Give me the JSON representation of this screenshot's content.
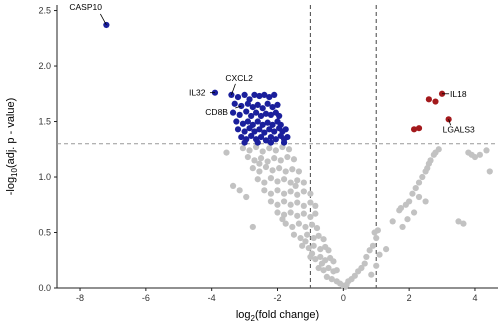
{
  "chart_data": {
    "type": "scatter",
    "title": "",
    "xlabel_parts": {
      "pre": "log",
      "sub": "2",
      "post": "(fold change)"
    },
    "ylabel_parts": {
      "pre": "-log",
      "sub": "10",
      "post": "(adj. p - value)"
    },
    "xlim": [
      -8.7,
      4.7
    ],
    "ylim": [
      0,
      2.55
    ],
    "x_ticks": [
      -8,
      -6,
      -4,
      -2,
      0,
      2,
      4
    ],
    "x_tick_labels": [
      "-8",
      "-6",
      "-4",
      "-2",
      "0",
      "2",
      "4"
    ],
    "y_ticks": [
      0,
      0.5,
      1.0,
      1.5,
      2.0,
      2.5
    ],
    "y_tick_labels": [
      "0.0",
      "0.5",
      "1.0",
      "1.5",
      "2.0",
      "2.5"
    ],
    "grid": false,
    "thresholds": {
      "vertical_x": [
        -1,
        1
      ],
      "horizontal_y": 1.3
    },
    "colors": {
      "down": "#1a1f9c",
      "up": "#a3191c",
      "ns": "#c2c2c2",
      "threshold": "#555555"
    },
    "series": [
      {
        "key": "down",
        "points": [
          [
            -7.2,
            2.37
          ],
          [
            -3.9,
            1.76
          ],
          [
            -3.4,
            1.74
          ],
          [
            -3.2,
            1.72
          ],
          [
            -3.0,
            1.74
          ],
          [
            -2.85,
            1.7
          ],
          [
            -2.7,
            1.74
          ],
          [
            -2.55,
            1.73
          ],
          [
            -2.4,
            1.74
          ],
          [
            -2.25,
            1.72
          ],
          [
            -2.1,
            1.74
          ],
          [
            -3.3,
            1.66
          ],
          [
            -3.1,
            1.64
          ],
          [
            -2.9,
            1.66
          ],
          [
            -2.75,
            1.63
          ],
          [
            -2.6,
            1.65
          ],
          [
            -2.45,
            1.62
          ],
          [
            -2.3,
            1.66
          ],
          [
            -2.15,
            1.63
          ],
          [
            -2.0,
            1.65
          ],
          [
            -3.35,
            1.58
          ],
          [
            -3.15,
            1.56
          ],
          [
            -2.95,
            1.59
          ],
          [
            -2.8,
            1.55
          ],
          [
            -2.65,
            1.58
          ],
          [
            -2.5,
            1.55
          ],
          [
            -2.35,
            1.57
          ],
          [
            -2.2,
            1.56
          ],
          [
            -2.05,
            1.58
          ],
          [
            -1.95,
            1.55
          ],
          [
            -3.25,
            1.5
          ],
          [
            -3.05,
            1.48
          ],
          [
            -2.9,
            1.5
          ],
          [
            -2.75,
            1.47
          ],
          [
            -2.6,
            1.5
          ],
          [
            -2.45,
            1.47
          ],
          [
            -2.3,
            1.49
          ],
          [
            -2.15,
            1.47
          ],
          [
            -2.0,
            1.5
          ],
          [
            -1.9,
            1.47
          ],
          [
            -3.2,
            1.43
          ],
          [
            -3.0,
            1.41
          ],
          [
            -2.85,
            1.44
          ],
          [
            -2.7,
            1.41
          ],
          [
            -2.55,
            1.43
          ],
          [
            -2.4,
            1.4
          ],
          [
            -2.25,
            1.43
          ],
          [
            -2.1,
            1.41
          ],
          [
            -1.95,
            1.44
          ],
          [
            -1.85,
            1.41
          ],
          [
            -1.75,
            1.43
          ],
          [
            -3.1,
            1.36
          ],
          [
            -2.95,
            1.34
          ],
          [
            -2.8,
            1.37
          ],
          [
            -2.65,
            1.34
          ],
          [
            -2.5,
            1.36
          ],
          [
            -2.35,
            1.33
          ],
          [
            -2.2,
            1.36
          ],
          [
            -2.05,
            1.34
          ],
          [
            -1.9,
            1.37
          ],
          [
            -1.8,
            1.34
          ],
          [
            -1.7,
            1.36
          ],
          [
            -3.0,
            1.31
          ],
          [
            -2.6,
            1.31
          ],
          [
            -2.2,
            1.31
          ],
          [
            -1.8,
            1.31
          ]
        ]
      },
      {
        "key": "up",
        "points": [
          [
            2.3,
            1.44
          ],
          [
            2.15,
            1.43
          ],
          [
            2.6,
            1.7
          ],
          [
            2.8,
            1.68
          ],
          [
            3.0,
            1.75
          ],
          [
            3.2,
            1.52
          ]
        ]
      },
      {
        "key": "ns",
        "points": [
          [
            -3.05,
            1.26
          ],
          [
            -2.85,
            1.24
          ],
          [
            -2.65,
            1.27
          ],
          [
            -2.45,
            1.23
          ],
          [
            -2.25,
            1.26
          ],
          [
            -2.05,
            1.24
          ],
          [
            -1.85,
            1.27
          ],
          [
            -1.65,
            1.25
          ],
          [
            -2.9,
            1.18
          ],
          [
            -2.7,
            1.15
          ],
          [
            -2.5,
            1.17
          ],
          [
            -2.3,
            1.14
          ],
          [
            -2.1,
            1.17
          ],
          [
            -1.9,
            1.15
          ],
          [
            -1.7,
            1.18
          ],
          [
            -1.5,
            1.16
          ],
          [
            -2.75,
            1.08
          ],
          [
            -2.55,
            1.05
          ],
          [
            -2.35,
            1.09
          ],
          [
            -2.15,
            1.06
          ],
          [
            -1.95,
            1.08
          ],
          [
            -1.75,
            1.05
          ],
          [
            -1.55,
            1.07
          ],
          [
            -1.35,
            1.05
          ],
          [
            -2.6,
            0.98
          ],
          [
            -2.4,
            0.95
          ],
          [
            -2.2,
            0.99
          ],
          [
            -2.0,
            0.96
          ],
          [
            -1.8,
            0.98
          ],
          [
            -1.6,
            0.95
          ],
          [
            -1.4,
            0.97
          ],
          [
            -1.2,
            0.95
          ],
          [
            -2.4,
            0.88
          ],
          [
            -2.2,
            0.85
          ],
          [
            -2.0,
            0.88
          ],
          [
            -1.8,
            0.85
          ],
          [
            -1.6,
            0.87
          ],
          [
            -1.4,
            0.84
          ],
          [
            -1.2,
            0.87
          ],
          [
            -1.0,
            0.85
          ],
          [
            -2.2,
            0.78
          ],
          [
            -2.0,
            0.75
          ],
          [
            -1.8,
            0.78
          ],
          [
            -1.6,
            0.75
          ],
          [
            -1.4,
            0.77
          ],
          [
            -1.2,
            0.74
          ],
          [
            -1.0,
            0.77
          ],
          [
            -0.85,
            0.74
          ],
          [
            -2.0,
            0.68
          ],
          [
            -1.8,
            0.66
          ],
          [
            -1.6,
            0.68
          ],
          [
            -1.4,
            0.65
          ],
          [
            -1.2,
            0.67
          ],
          [
            -1.0,
            0.64
          ],
          [
            -0.85,
            0.67
          ],
          [
            -1.75,
            0.58
          ],
          [
            -1.55,
            0.55
          ],
          [
            -1.35,
            0.58
          ],
          [
            -1.15,
            0.55
          ],
          [
            -0.95,
            0.57
          ],
          [
            -0.8,
            0.54
          ],
          [
            -1.5,
            0.48
          ],
          [
            -1.3,
            0.45
          ],
          [
            -1.1,
            0.48
          ],
          [
            -0.9,
            0.45
          ],
          [
            -0.75,
            0.47
          ],
          [
            -0.6,
            0.44
          ],
          [
            -1.25,
            0.38
          ],
          [
            -1.05,
            0.36
          ],
          [
            -0.9,
            0.38
          ],
          [
            -0.7,
            0.35
          ],
          [
            -0.55,
            0.37
          ],
          [
            -0.45,
            0.34
          ],
          [
            -1.0,
            0.28
          ],
          [
            -0.85,
            0.26
          ],
          [
            -0.7,
            0.28
          ],
          [
            -0.55,
            0.25
          ],
          [
            -0.4,
            0.27
          ],
          [
            -0.3,
            0.24
          ],
          [
            -0.75,
            0.18
          ],
          [
            -0.6,
            0.16
          ],
          [
            -0.45,
            0.18
          ],
          [
            -0.3,
            0.15
          ],
          [
            -0.2,
            0.16
          ],
          [
            -0.5,
            0.1
          ],
          [
            -0.35,
            0.08
          ],
          [
            -0.2,
            0.06
          ],
          [
            -0.1,
            0.04
          ],
          [
            0.0,
            0.02
          ],
          [
            0.05,
            0.01
          ],
          [
            0.1,
            0.03
          ],
          [
            -2.55,
            1.12
          ],
          [
            -1.45,
            0.92
          ],
          [
            -1.85,
            0.62
          ],
          [
            -1.15,
            0.42
          ],
          [
            -0.95,
            0.31
          ],
          [
            -0.65,
            0.22
          ],
          [
            -3.55,
            1.22
          ],
          [
            -3.35,
            0.92
          ],
          [
            -3.15,
            0.88
          ],
          [
            -2.95,
            0.82
          ],
          [
            -2.75,
            0.55
          ],
          [
            0.15,
            0.06
          ],
          [
            0.25,
            0.08
          ],
          [
            0.35,
            0.11
          ],
          [
            0.45,
            0.15
          ],
          [
            0.55,
            0.18
          ],
          [
            0.65,
            0.22
          ],
          [
            0.7,
            0.28
          ],
          [
            0.8,
            0.34
          ],
          [
            0.9,
            0.38
          ],
          [
            1.0,
            0.45
          ],
          [
            1.05,
            0.52
          ],
          [
            0.95,
            0.5
          ],
          [
            1.0,
            0.2
          ],
          [
            0.85,
            0.12
          ],
          [
            1.1,
            0.3
          ],
          [
            1.3,
            0.35
          ],
          [
            1.5,
            0.6
          ],
          [
            1.7,
            0.7
          ],
          [
            1.75,
            0.72
          ],
          [
            1.9,
            0.75
          ],
          [
            2.0,
            0.78
          ],
          [
            2.1,
            0.85
          ],
          [
            2.2,
            0.9
          ],
          [
            2.3,
            0.95
          ],
          [
            2.4,
            1.0
          ],
          [
            2.5,
            1.05
          ],
          [
            2.55,
            1.08
          ],
          [
            2.6,
            1.12
          ],
          [
            2.65,
            1.15
          ],
          [
            2.75,
            1.2
          ],
          [
            2.8,
            1.22
          ],
          [
            2.9,
            1.25
          ],
          [
            2.3,
            0.82
          ],
          [
            2.5,
            0.78
          ],
          [
            1.8,
            0.55
          ],
          [
            1.95,
            0.62
          ],
          [
            2.15,
            0.68
          ],
          [
            3.8,
            1.22
          ],
          [
            3.9,
            1.2
          ],
          [
            4.0,
            1.18
          ],
          [
            4.15,
            1.2
          ],
          [
            4.35,
            1.24
          ],
          [
            4.45,
            1.05
          ],
          [
            3.5,
            0.6
          ],
          [
            3.65,
            0.58
          ]
        ]
      }
    ],
    "labels": [
      {
        "text": "CASP10",
        "x": -7.2,
        "y": 2.37
      },
      {
        "text": "IL32",
        "x": -3.9,
        "y": 1.76
      },
      {
        "text": "CXCL2",
        "x": -3.4,
        "y": 1.74
      },
      {
        "text": "CD8B",
        "x": -3.1,
        "y": 1.64
      },
      {
        "text": "IL18",
        "x": 3.0,
        "y": 1.75
      },
      {
        "text": "LGALS3",
        "x": 3.2,
        "y": 1.52
      }
    ]
  }
}
